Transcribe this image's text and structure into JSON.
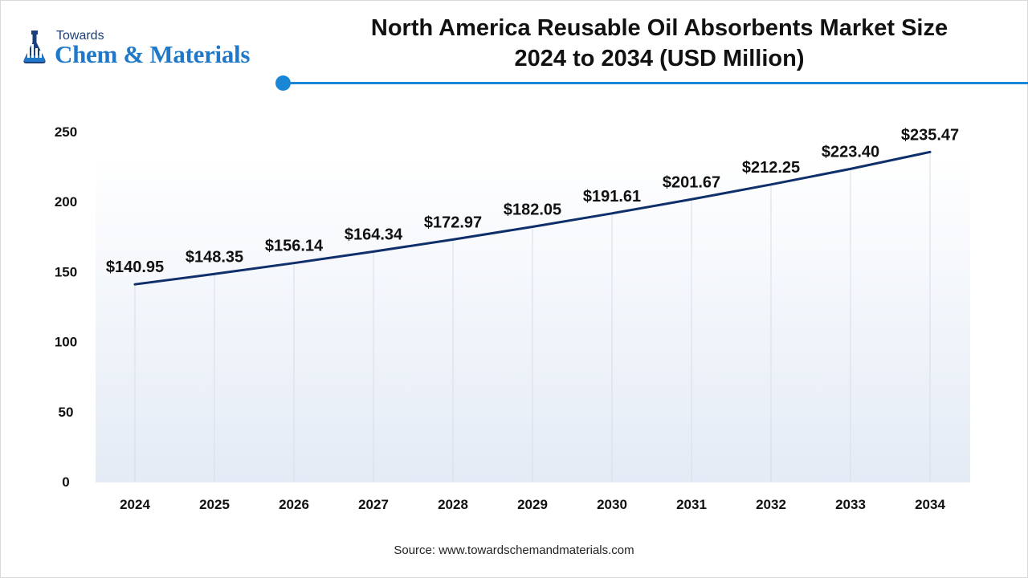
{
  "brand": {
    "top": "Towards",
    "main": "Chem & Materials"
  },
  "chart_title": {
    "line1": "North America Reusable Oil Absorbents Market Size",
    "line2": "2024 to 2034 (USD Million)"
  },
  "source": "Source: www.towardschemandmaterials.com",
  "colors": {
    "line": "#0f2f6b",
    "accent": "#1a87d6",
    "brand_dark": "#1a3f7a",
    "brand_light": "#1f78c8"
  },
  "chart_data": {
    "type": "line",
    "title": "North America Reusable Oil Absorbents Market Size 2024 to 2034 (USD Million)",
    "x": [
      "2024",
      "2025",
      "2026",
      "2027",
      "2028",
      "2029",
      "2030",
      "2031",
      "2032",
      "2033",
      "2034"
    ],
    "series": [
      {
        "values": [
          140.95,
          148.35,
          156.14,
          164.34,
          172.97,
          182.05,
          191.61,
          201.67,
          212.25,
          223.4,
          235.47
        ],
        "labels": [
          "$140.95",
          "$148.35",
          "$156.14",
          "$164.34",
          "$172.97",
          "$182.05",
          "$191.61",
          "$201.67",
          "$212.25",
          "$223.40",
          "$235.47"
        ]
      }
    ],
    "yticks": [
      0,
      50,
      100,
      150,
      200,
      250
    ],
    "ylim": [
      0,
      250
    ],
    "xlabel": "",
    "ylabel": "",
    "grid": "vertical",
    "legend": "none"
  }
}
